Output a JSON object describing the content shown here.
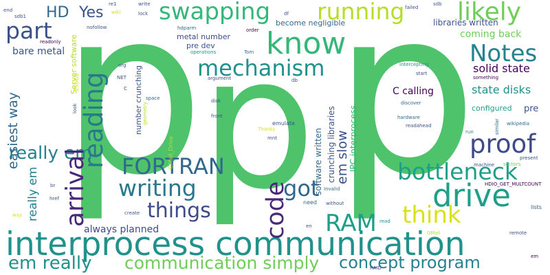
{
  "palette": {
    "background": "#ffffff",
    "purple": "#440154",
    "indigo": "#3b528b",
    "blue": "#31688e",
    "teal": "#21918c",
    "seagreen": "#2a9d8f",
    "green": "#35b779",
    "brightgreen": "#4ec36b",
    "lime": "#6ece58",
    "yellowgreen": "#b5de2b",
    "yellow": "#d8e219"
  },
  "words": [
    {
      "text": "p",
      "color": "#4ec36b"
    },
    {
      "text": "p",
      "color": "#4ec36b"
    },
    {
      "text": "p",
      "color": "#4ec36b"
    },
    {
      "text": "interprocess communication",
      "color": "#21918c"
    },
    {
      "text": "know",
      "color": "#35b779"
    },
    {
      "text": "drive",
      "color": "#1f9e89"
    },
    {
      "text": "Notes",
      "color": "#26828e"
    },
    {
      "text": "proof",
      "color": "#3e4a89"
    },
    {
      "text": "bottleneck",
      "color": "#1f9e89"
    },
    {
      "text": "swapping",
      "color": "#35b779"
    },
    {
      "text": "running",
      "color": "#b5de2b"
    },
    {
      "text": "likely",
      "color": "#6ece58"
    },
    {
      "text": "part",
      "color": "#3b528b"
    },
    {
      "text": "mechanism",
      "color": "#21918c"
    },
    {
      "text": "reading",
      "color": "#2a788e"
    },
    {
      "text": "arrival",
      "color": "#482878"
    },
    {
      "text": "FORTRAN",
      "color": "#31688e"
    },
    {
      "text": "writing",
      "color": "#2a788e"
    },
    {
      "text": "things",
      "color": "#3e4a89"
    },
    {
      "text": "code",
      "color": "#482878"
    },
    {
      "text": "got",
      "color": "#31688e"
    },
    {
      "text": "RAM",
      "color": "#1f9e89"
    },
    {
      "text": "think",
      "color": "#d8e219"
    },
    {
      "text": "em slow",
      "color": "#3b528b"
    },
    {
      "text": "easiest way",
      "color": "#31688e"
    },
    {
      "text": "really em",
      "color": "#26828e"
    },
    {
      "text": "em really",
      "color": "#21918c"
    },
    {
      "text": "communication simply",
      "color": "#6ece58"
    },
    {
      "text": "concept program",
      "color": "#26828e"
    },
    {
      "text": "HD",
      "color": "#31688e"
    },
    {
      "text": "Yes",
      "color": "#3b528b"
    },
    {
      "text": "bare metal",
      "color": "#3b528b"
    },
    {
      "text": "solid state",
      "color": "#440154"
    },
    {
      "text": "state disks",
      "color": "#21918c"
    },
    {
      "text": "coming back",
      "color": "#6ece58"
    },
    {
      "text": "C calling",
      "color": "#440154"
    },
    {
      "text": "always planned",
      "color": "#3e4a89"
    },
    {
      "text": "configured",
      "color": "#1f9e89"
    },
    {
      "text": "pre",
      "color": "#3b528b"
    },
    {
      "text": "libraries written",
      "color": "#3b528b"
    },
    {
      "text": "become negligible",
      "color": "#31688e"
    },
    {
      "text": "software written",
      "color": "#31688e"
    },
    {
      "text": "crunching libraries",
      "color": "#3b528b"
    },
    {
      "text": "IPC interprocess",
      "color": "#35b779"
    },
    {
      "text": "number crunching",
      "color": "#3b528b"
    },
    {
      "text": "metal number",
      "color": "#3e4a89"
    },
    {
      "text": "pre dev",
      "color": "#3b528b"
    },
    {
      "text": "Server software",
      "color": "#b5de2b"
    },
    {
      "text": "hdparm",
      "color": "#31688e"
    },
    {
      "text": "operations",
      "color": "#21918c"
    },
    {
      "text": "argument",
      "color": "#3b528b"
    },
    {
      "text": "Tom",
      "color": "#31688e"
    },
    {
      "text": "order",
      "color": "#440154"
    },
    {
      "text": "df",
      "color": "#3b528b"
    },
    {
      "text": "db",
      "color": "#3b528b"
    },
    {
      "text": "disk",
      "color": "#3b528b"
    },
    {
      "text": "front",
      "color": "#3b528b"
    },
    {
      "text": "emulate",
      "color": "#3b528b"
    },
    {
      "text": "Thanks",
      "color": "#d8e219"
    },
    {
      "text": "mnt",
      "color": "#3b528b"
    },
    {
      "text": "intercepting",
      "color": "#21918c"
    },
    {
      "text": "start",
      "color": "#3b528b"
    },
    {
      "text": "discover",
      "color": "#31688e"
    },
    {
      "text": "hardware",
      "color": "#31688e"
    },
    {
      "text": "readahead",
      "color": "#3b528b"
    },
    {
      "text": "something",
      "color": "#440154"
    },
    {
      "text": "wikipedia",
      "color": "#31688e"
    },
    {
      "text": "similar",
      "color": "#31688e"
    },
    {
      "text": "run",
      "color": "#26828e"
    },
    {
      "text": "machine",
      "color": "#3b528b"
    },
    {
      "text": "sectors",
      "color": "#6ece58"
    },
    {
      "text": "present",
      "color": "#3b528b"
    },
    {
      "text": "HDIO_GET_MULTCOUNT",
      "color": "#440154"
    },
    {
      "text": "lists",
      "color": "#3b528b"
    },
    {
      "text": "Invalid",
      "color": "#31688e"
    },
    {
      "text": "need",
      "color": "#31688e"
    },
    {
      "text": "without",
      "color": "#3b528b"
    },
    {
      "text": "en",
      "color": "#3b528b"
    },
    {
      "text": "read",
      "color": "#21918c"
    },
    {
      "text": "GMail",
      "color": "#b5de2b"
    },
    {
      "text": "remote",
      "color": "#3b528b"
    },
    {
      "text": "RAID",
      "color": "#3b528b"
    },
    {
      "text": "em",
      "color": "#440154"
    },
    {
      "text": "GMail_Drive",
      "color": "#b5de2b"
    },
    {
      "text": "create",
      "color": "#3b528b"
    },
    {
      "text": "href",
      "color": "#3b528b"
    },
    {
      "text": "br",
      "color": "#3b528b"
    },
    {
      "text": "way",
      "color": "#d8e219"
    },
    {
      "text": "end",
      "color": "#3b528b"
    },
    {
      "text": "sdb1",
      "color": "#3b528b"
    },
    {
      "text": "readonly",
      "color": "#440154"
    },
    {
      "text": "nofollow",
      "color": "#3b528b"
    },
    {
      "text": "re1",
      "color": "#3b528b"
    },
    {
      "text": "wiki",
      "color": "#d8e219"
    },
    {
      "text": "write",
      "color": "#3b528b"
    },
    {
      "text": "lock",
      "color": "#3b528b"
    },
    {
      "text": "sdb",
      "color": "#3b528b"
    },
    {
      "text": "failed",
      "color": "#3b528b"
    },
    {
      "text": "NET",
      "color": "#3b528b"
    },
    {
      "text": "org",
      "color": "#3b528b"
    },
    {
      "text": "C",
      "color": "#3b528b"
    },
    {
      "text": "space",
      "color": "#31688e"
    },
    {
      "text": "look",
      "color": "#3b528b"
    },
    {
      "text": "256GB",
      "color": "#d8e219"
    },
    {
      "text": "geometry",
      "color": "#b5de2b"
    }
  ]
}
